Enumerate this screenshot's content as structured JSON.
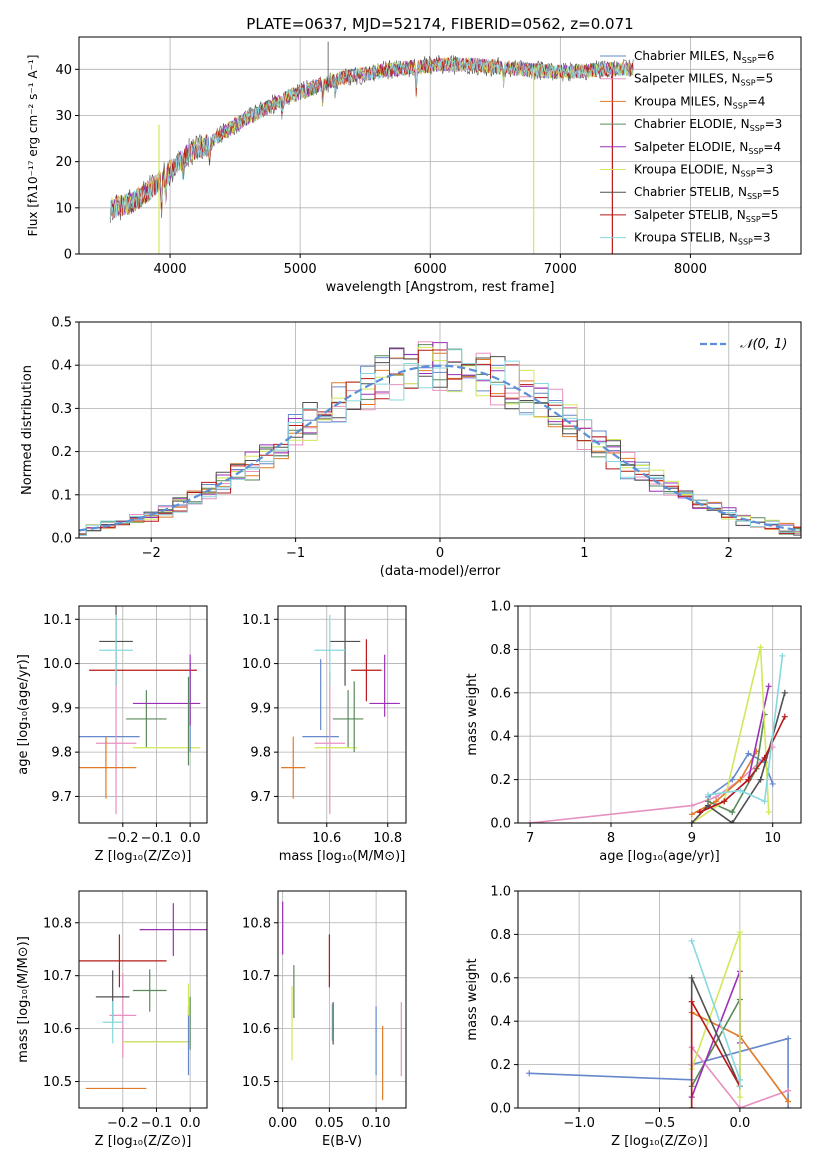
{
  "figure": {
    "title": "PLATE=0637, MJD=52174, FIBERID=0562, z=0.071"
  },
  "chart_data": [
    {
      "id": "spectrum",
      "type": "line",
      "xlabel": "wavelength [Angstrom, rest frame]",
      "ylabel": "Flux [fλ10⁻¹⁷ erg cm⁻² s⁻¹ A⁻¹]",
      "xlim": [
        3300,
        8850
      ],
      "ylim": [
        0,
        47
      ],
      "xticks": [
        4000,
        5000,
        6000,
        7000,
        8000
      ],
      "yticks": [
        0,
        10,
        20,
        30,
        40
      ],
      "grid": true,
      "legend_position": "top-right",
      "continuum_x": [
        3550,
        3700,
        3850,
        4000,
        4150,
        4300,
        4500,
        4700,
        4900,
        5100,
        5300,
        5500,
        5700,
        5900,
        6100,
        6300,
        6500,
        6700,
        6900,
        7100,
        7300,
        7500
      ],
      "continuum_y": [
        10,
        11,
        14,
        18,
        22,
        24,
        28,
        31,
        34,
        36,
        38,
        39,
        40,
        40.5,
        41,
        41,
        40.5,
        40,
        39.5,
        39.5,
        40,
        40
      ],
      "series": [
        {
          "name": "Chabrier MILES, N_SSP=6",
          "color": "#6688cc"
        },
        {
          "name": "Salpeter MILES, N_SSP=5",
          "color": "#e890c0"
        },
        {
          "name": "Kroupa MILES, N_SSP=4",
          "color": "#e07a28"
        },
        {
          "name": "Chabrier ELODIE, N_SSP=3",
          "color": "#5a8a5a"
        },
        {
          "name": "Salpeter ELODIE, N_SSP=4",
          "color": "#9a30b8"
        },
        {
          "name": "Kroupa ELODIE, N_SSP=3",
          "color": "#d2e85a"
        },
        {
          "name": "Chabrier STELIB, N_SSP=5",
          "color": "#505050"
        },
        {
          "name": "Salpeter STELIB, N_SSP=5",
          "color": "#b81818"
        },
        {
          "name": "Kroupa STELIB, N_SSP=3",
          "color": "#88d8e0"
        }
      ]
    },
    {
      "id": "residuals",
      "type": "line",
      "xlabel": "(data-model)/error",
      "ylabel": "Normed distribution",
      "xlim": [
        -2.5,
        2.5
      ],
      "ylim": [
        0,
        0.5
      ],
      "xticks": [
        -2,
        -1,
        0,
        1,
        2
      ],
      "yticks": [
        0.0,
        0.1,
        0.2,
        0.3,
        0.4,
        0.5
      ],
      "grid": true,
      "legend": "𝒩(0, 1)",
      "legend_position": "top-right",
      "bin_width": 0.1
    },
    {
      "id": "age-Z",
      "type": "scatter",
      "xlabel": "Z [log₁₀(Z/Z⊙)]",
      "ylabel": "age  [log₁₀(age/yr)]",
      "xlim": [
        -0.33,
        0.05
      ],
      "ylim": [
        9.64,
        10.13
      ],
      "xticks": [
        -0.2,
        -0.1,
        0.0
      ],
      "yticks": [
        9.7,
        9.8,
        9.9,
        10.0,
        10.1
      ],
      "grid": true,
      "points": [
        {
          "x": -0.24,
          "xerr": 0.09,
          "y": 9.835,
          "yerr": 0.0,
          "color": "#6688cc"
        },
        {
          "x": -0.22,
          "xerr": 0.06,
          "y": 9.82,
          "yerr": 0.16,
          "color": "#e890c0"
        },
        {
          "x": -0.25,
          "xerr": 0.09,
          "y": 9.765,
          "yerr": 0.07,
          "color": "#e07a28"
        },
        {
          "x": -0.13,
          "xerr": 0.06,
          "y": 9.875,
          "yerr": 0.065,
          "color": "#5a8a5a"
        },
        {
          "x": -0.07,
          "xerr": 0.1,
          "y": 9.91,
          "yerr": 0.0,
          "color": "#9a30b8"
        },
        {
          "x": -0.07,
          "xerr": 0.1,
          "y": 9.81,
          "yerr": 0.0,
          "color": "#d2e85a"
        },
        {
          "x": -0.22,
          "xerr": 0.05,
          "y": 10.05,
          "yerr": 0.1,
          "color": "#505050"
        },
        {
          "x": -0.14,
          "xerr": 0.16,
          "y": 9.985,
          "yerr": 0.0,
          "color": "#b81818"
        },
        {
          "x": -0.22,
          "xerr": 0.05,
          "y": 10.03,
          "yerr": 0.08,
          "color": "#88d8e0"
        },
        {
          "x": 0.0,
          "xerr": 0.0,
          "y": 9.9,
          "yerr": 0.1,
          "color": "#6688cc"
        },
        {
          "x": 0.0,
          "xerr": 0.0,
          "y": 9.94,
          "yerr": 0.08,
          "color": "#9a30b8"
        },
        {
          "x": -0.005,
          "xerr": 0.0,
          "y": 9.87,
          "yerr": 0.1,
          "color": "#5a8a5a"
        }
      ]
    },
    {
      "id": "age-mass",
      "type": "scatter",
      "xlabel": "mass [log₁₀(M/M⊙)]",
      "ylabel": "",
      "xlim": [
        10.44,
        10.86
      ],
      "ylim": [
        9.64,
        10.13
      ],
      "xticks": [
        10.6,
        10.8
      ],
      "yticks": [
        9.7,
        9.8,
        9.9,
        10.0,
        10.1
      ],
      "grid": true,
      "points": [
        {
          "x": 10.58,
          "xerr": 0.06,
          "y": 9.835,
          "yerr": 0.0,
          "color": "#6688cc"
        },
        {
          "x": 10.61,
          "xerr": 0.05,
          "y": 9.82,
          "yerr": 0.16,
          "color": "#e890c0"
        },
        {
          "x": 10.49,
          "xerr": 0.04,
          "y": 9.765,
          "yerr": 0.07,
          "color": "#e07a28"
        },
        {
          "x": 10.67,
          "xerr": 0.05,
          "y": 9.875,
          "yerr": 0.065,
          "color": "#5a8a5a"
        },
        {
          "x": 10.79,
          "xerr": 0.05,
          "y": 9.91,
          "yerr": 0.0,
          "color": "#9a30b8"
        },
        {
          "x": 10.63,
          "xerr": 0.07,
          "y": 9.81,
          "yerr": 0.0,
          "color": "#d2e85a"
        },
        {
          "x": 10.66,
          "xerr": 0.05,
          "y": 10.05,
          "yerr": 0.1,
          "color": "#505050"
        },
        {
          "x": 10.73,
          "xerr": 0.05,
          "y": 9.985,
          "yerr": 0.07,
          "color": "#b81818"
        },
        {
          "x": 10.61,
          "xerr": 0.05,
          "y": 10.03,
          "yerr": 0.08,
          "color": "#88d8e0"
        },
        {
          "x": 10.58,
          "xerr": 0.0,
          "y": 9.93,
          "yerr": 0.08,
          "color": "#6688cc"
        },
        {
          "x": 10.79,
          "xerr": 0.0,
          "y": 9.95,
          "yerr": 0.07,
          "color": "#9a30b8"
        },
        {
          "x": 10.69,
          "xerr": 0.0,
          "y": 9.88,
          "yerr": 0.08,
          "color": "#5a8a5a"
        }
      ]
    },
    {
      "id": "massweight-age",
      "type": "line",
      "xlabel": "age  [log₁₀(age/yr)]",
      "ylabel": "mass weight",
      "xlim": [
        6.85,
        10.35
      ],
      "ylim": [
        0,
        1
      ],
      "xticks": [
        7,
        8,
        9,
        10
      ],
      "yticks": [
        0.0,
        0.2,
        0.4,
        0.6,
        0.8,
        1.0
      ],
      "grid": true,
      "series": [
        {
          "color": "#e890c0",
          "x": [
            7.0,
            9.0,
            9.3,
            9.6,
            9.9,
            10.0
          ],
          "y": [
            0.0,
            0.08,
            0.12,
            0.2,
            0.3,
            0.35
          ]
        },
        {
          "color": "#6688cc",
          "x": [
            9.2,
            9.5,
            9.7,
            9.9,
            10.0
          ],
          "y": [
            0.12,
            0.2,
            0.32,
            0.28,
            0.18
          ]
        },
        {
          "color": "#e07a28",
          "x": [
            9.0,
            9.3,
            9.6,
            9.8
          ],
          "y": [
            0.04,
            0.1,
            0.2,
            0.33
          ]
        },
        {
          "color": "#5a8a5a",
          "x": [
            9.2,
            9.5,
            9.8,
            9.9
          ],
          "y": [
            0.1,
            0.05,
            0.25,
            0.5
          ]
        },
        {
          "color": "#9a30b8",
          "x": [
            9.1,
            9.4,
            9.7,
            9.95
          ],
          "y": [
            0.05,
            0.1,
            0.2,
            0.63
          ]
        },
        {
          "color": "#d2e85a",
          "x": [
            9.0,
            9.4,
            9.85,
            9.95
          ],
          "y": [
            0.0,
            0.1,
            0.81,
            0.05
          ]
        },
        {
          "color": "#505050",
          "x": [
            9.0,
            9.2,
            9.5,
            9.85,
            10.15
          ],
          "y": [
            0.0,
            0.08,
            0.0,
            0.2,
            0.6
          ]
        },
        {
          "color": "#b81818",
          "x": [
            9.1,
            9.4,
            9.7,
            9.9,
            10.15
          ],
          "y": [
            0.05,
            0.1,
            0.2,
            0.3,
            0.49
          ]
        },
        {
          "color": "#88d8e0",
          "x": [
            9.2,
            9.6,
            9.9,
            10.12
          ],
          "y": [
            0.13,
            0.15,
            0.1,
            0.77
          ]
        }
      ]
    },
    {
      "id": "mass-Z",
      "type": "scatter",
      "xlabel": "Z [log₁₀(Z/Z⊙)]",
      "ylabel": "mass [log₁₀(M/M⊙)]",
      "xlim": [
        -0.33,
        0.05
      ],
      "ylim": [
        10.45,
        10.86
      ],
      "xticks": [
        -0.2,
        -0.1,
        0.0
      ],
      "yticks": [
        10.5,
        10.6,
        10.7,
        10.8
      ],
      "grid": true,
      "points": [
        {
          "x": -0.1,
          "xerr": 0.1,
          "y": 10.575,
          "yerr": 0.0,
          "color": "#6688cc"
        },
        {
          "x": -0.2,
          "xerr": 0.04,
          "y": 10.625,
          "yerr": 0.08,
          "color": "#e890c0"
        },
        {
          "x": -0.22,
          "xerr": 0.09,
          "y": 10.487,
          "yerr": 0.0,
          "color": "#e07a28"
        },
        {
          "x": -0.12,
          "xerr": 0.05,
          "y": 10.672,
          "yerr": 0.04,
          "color": "#5a8a5a"
        },
        {
          "x": -0.05,
          "xerr": 0.1,
          "y": 10.787,
          "yerr": 0.05,
          "color": "#9a30b8"
        },
        {
          "x": -0.1,
          "xerr": 0.1,
          "y": 10.575,
          "yerr": 0.0,
          "color": "#d2e85a"
        },
        {
          "x": -0.23,
          "xerr": 0.05,
          "y": 10.66,
          "yerr": 0.05,
          "color": "#505050"
        },
        {
          "x": -0.21,
          "xerr": 0.14,
          "y": 10.728,
          "yerr": 0.05,
          "color": "#b81818"
        },
        {
          "x": -0.23,
          "xerr": 0.03,
          "y": 10.612,
          "yerr": 0.04,
          "color": "#88d8e0"
        },
        {
          "x": -0.005,
          "xerr": 0.0,
          "y": 10.577,
          "yerr": 0.065,
          "color": "#6688cc"
        },
        {
          "x": -0.005,
          "xerr": 0.0,
          "y": 10.655,
          "yerr": 0.03,
          "color": "#d2e85a"
        },
        {
          "x": 0.0,
          "xerr": 0.0,
          "y": 10.61,
          "yerr": 0.05,
          "color": "#5a8a5a"
        }
      ]
    },
    {
      "id": "mass-ebv",
      "type": "scatter",
      "xlabel": "E(B-V)",
      "ylabel": "",
      "xlim": [
        -0.005,
        0.132
      ],
      "ylim": [
        10.45,
        10.86
      ],
      "xticks": [
        0.0,
        0.05,
        0.1
      ],
      "xticklabels": [
        "0.00",
        "0.05",
        "0.10"
      ],
      "yticks": [
        10.5,
        10.6,
        10.7,
        10.8
      ],
      "grid": true,
      "points": [
        {
          "x": 0.0,
          "y": 10.79,
          "yerr": 0.05,
          "color": "#9a30b8"
        },
        {
          "x": 0.01,
          "y": 10.61,
          "yerr": 0.07,
          "color": "#d2e85a"
        },
        {
          "x": 0.012,
          "y": 10.67,
          "yerr": 0.05,
          "color": "#5a8a5a"
        },
        {
          "x": 0.05,
          "y": 10.728,
          "yerr": 0.05,
          "color": "#b81818"
        },
        {
          "x": 0.053,
          "y": 10.612,
          "yerr": 0.035,
          "color": "#88d8e0"
        },
        {
          "x": 0.054,
          "y": 10.61,
          "yerr": 0.04,
          "color": "#505050"
        },
        {
          "x": 0.1,
          "y": 10.577,
          "yerr": 0.065,
          "color": "#6688cc"
        },
        {
          "x": 0.107,
          "y": 10.535,
          "yerr": 0.07,
          "color": "#e07a28"
        },
        {
          "x": 0.127,
          "y": 10.58,
          "yerr": 0.07,
          "color": "#e890c0"
        }
      ]
    },
    {
      "id": "massweight-Z",
      "type": "line",
      "xlabel": "Z [log₁₀(Z/Z⊙)]",
      "ylabel": "mass weight",
      "xlim": [
        -1.38,
        0.38
      ],
      "ylim": [
        0,
        1
      ],
      "xticks": [
        -1.0,
        -0.5,
        0.0
      ],
      "yticks": [
        0.0,
        0.2,
        0.4,
        0.6,
        0.8,
        1.0
      ],
      "grid": true,
      "series": [
        {
          "color": "#6688cc",
          "x": [
            -1.31,
            -0.3,
            -0.3,
            0.3,
            0.3
          ],
          "y": [
            0.16,
            0.13,
            0.2,
            0.32,
            0.0
          ]
        },
        {
          "color": "#e890c0",
          "x": [
            -0.3,
            -0.3,
            0.0,
            0.3
          ],
          "y": [
            0.2,
            0.28,
            0.0,
            0.08
          ]
        },
        {
          "color": "#e07a28",
          "x": [
            -0.3,
            0.0,
            0.3
          ],
          "y": [
            0.44,
            0.33,
            0.03
          ]
        },
        {
          "color": "#5a8a5a",
          "x": [
            -0.3,
            0.0,
            0.0
          ],
          "y": [
            0.1,
            0.5,
            0.13
          ]
        },
        {
          "color": "#9a30b8",
          "x": [
            -0.3,
            0.0,
            0.0
          ],
          "y": [
            0.05,
            0.63,
            0.3
          ]
        },
        {
          "color": "#d2e85a",
          "x": [
            -0.3,
            0.0,
            0.0
          ],
          "y": [
            0.18,
            0.81,
            0.05
          ]
        },
        {
          "color": "#505050",
          "x": [
            -0.3,
            -0.3,
            0.0
          ],
          "y": [
            0.0,
            0.6,
            0.1
          ]
        },
        {
          "color": "#b81818",
          "x": [
            -0.3,
            -0.3,
            0.0
          ],
          "y": [
            0.0,
            0.49,
            0.1
          ]
        },
        {
          "color": "#88d8e0",
          "x": [
            -0.3,
            0.0,
            0.0
          ],
          "y": [
            0.77,
            0.13,
            0.1
          ]
        }
      ]
    }
  ]
}
